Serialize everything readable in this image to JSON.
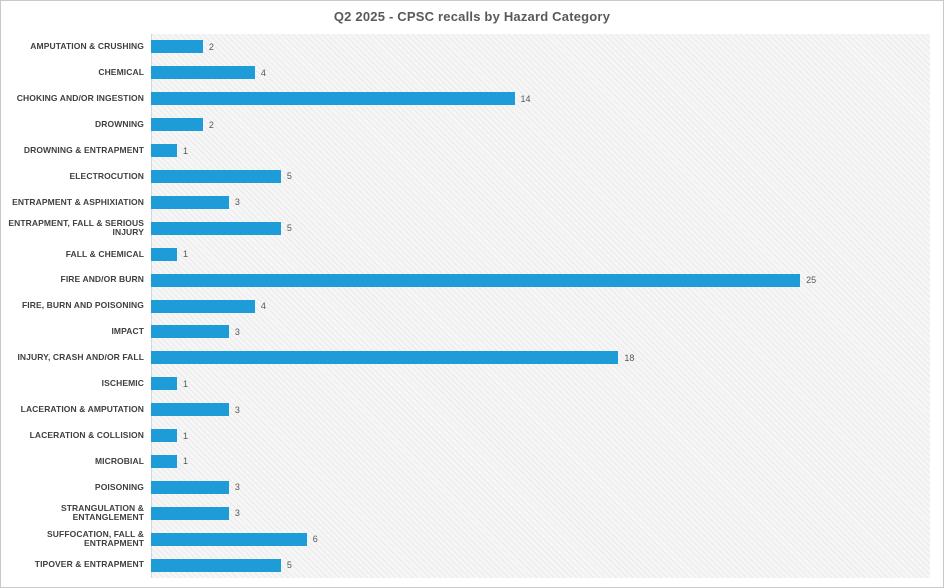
{
  "chart_data": {
    "type": "bar",
    "orientation": "horizontal",
    "title": "Q2 2025 - CPSC recalls by Hazard Category",
    "categories": [
      "AMPUTATION & CRUSHING",
      "CHEMICAL",
      "CHOKING AND/OR INGESTION",
      "DROWNING",
      "DROWNING & ENTRAPMENT",
      "ELECTROCUTION",
      "ENTRAPMENT & ASPHIXIATION",
      "ENTRAPMENT, FALL & SERIOUS INJURY",
      "FALL & CHEMICAL",
      "FIRE AND/OR BURN",
      "FIRE, BURN AND POISONING",
      "IMPACT",
      "INJURY, CRASH AND/OR FALL",
      "ISCHEMIC",
      "LACERATION & AMPUTATION",
      "LACERATION & COLLISION",
      "MICROBIAL",
      "POISONING",
      "STRANGULATION & ENTANGLEMENT",
      "SUFFOCATION, FALL & ENTRAPMENT",
      "TIPOVER & ENTRAPMENT"
    ],
    "values": [
      2,
      4,
      14,
      2,
      1,
      5,
      3,
      5,
      1,
      25,
      4,
      3,
      18,
      1,
      3,
      1,
      1,
      3,
      3,
      6,
      5
    ],
    "xlabel": "",
    "ylabel": "",
    "xlim": [
      0,
      30
    ],
    "grid": false,
    "legend": "none",
    "data_labels": true,
    "bar_color": "#1e9cd7",
    "title_color": "#595959",
    "label_color": "#3f3f3f",
    "value_label_color": "#595959",
    "plot_bg_color": "#f6f6f6"
  }
}
